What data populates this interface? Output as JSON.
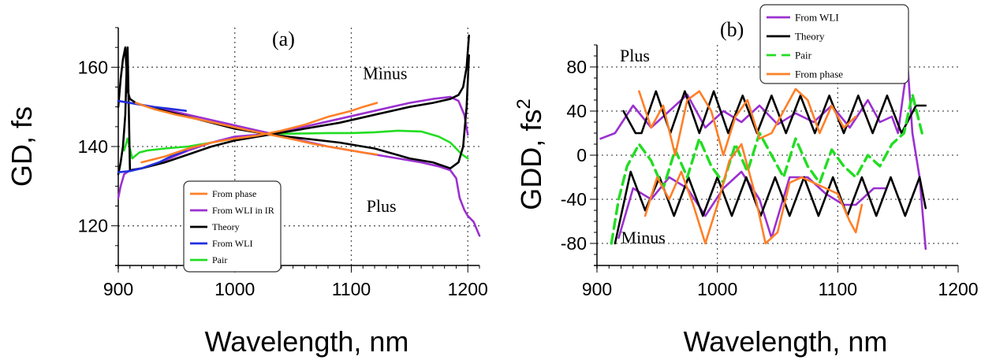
{
  "chart_data": [
    {
      "type": "line",
      "panel_label": "(a)",
      "xlabel": "Wavelength, nm",
      "ylabel": "GD, fs",
      "xlim": [
        900,
        1210
      ],
      "ylim": [
        110,
        170
      ],
      "x_ticks": [
        "900",
        "1000",
        "1100",
        "1200"
      ],
      "y_ticks": [
        "120",
        "140",
        "160"
      ],
      "grid": true,
      "annotations": [
        {
          "text": "Minus",
          "x": 1110,
          "y": 157
        },
        {
          "text": "Plus",
          "x": 1113,
          "y": 123.5
        }
      ],
      "legend": [
        "From phase",
        "From WLI in IR",
        "Theory",
        "From WLI",
        "Pair"
      ],
      "series": [
        {
          "name": "Pair",
          "color": "#22dd22",
          "x": [
            905,
            908,
            912,
            918,
            925,
            940,
            960,
            980,
            1000,
            1020,
            1040,
            1060,
            1080,
            1100,
            1120,
            1140,
            1160,
            1175,
            1185,
            1195,
            1200
          ],
          "y": [
            139,
            142,
            137,
            138.5,
            139,
            139.5,
            140,
            141,
            142,
            142.8,
            143.2,
            143.3,
            143.4,
            143.4,
            143.6,
            144,
            143.8,
            142.5,
            141,
            138,
            137
          ]
        },
        {
          "name": "From WLI in IR",
          "color": "#9b30d0",
          "x": [
            900,
            902,
            905,
            910,
            920,
            940,
            960,
            980,
            1000,
            1030,
            1060,
            1090,
            1120,
            1150,
            1170,
            1185,
            1192,
            1197,
            1200
          ],
          "y": [
            127,
            130,
            133,
            134,
            134.5,
            136.5,
            139,
            141,
            142.5,
            143.2,
            145,
            147,
            149,
            151,
            152,
            152.5,
            151.5,
            148,
            143
          ]
        },
        {
          "name": "From WLI in IR",
          "color": "#9b30d0",
          "x": [
            900,
            910,
            930,
            960,
            990,
            1020,
            1050,
            1080,
            1110,
            1140,
            1160,
            1175,
            1185,
            1190,
            1193,
            1197,
            1200,
            1205,
            1210
          ],
          "y": [
            151.5,
            151,
            150,
            148,
            146,
            144,
            142,
            140,
            138.5,
            137,
            136,
            135,
            134,
            132,
            127,
            124,
            122.5,
            121,
            117.5
          ]
        },
        {
          "name": "Theory",
          "color": "#000000",
          "x": [
            900,
            902,
            904,
            906,
            908,
            910,
            915,
            920,
            940,
            960,
            980,
            1000,
            1030,
            1060,
            1090,
            1120,
            1150,
            1170,
            1185,
            1192,
            1196,
            1199,
            1201
          ],
          "y": [
            150,
            157,
            162,
            165,
            154,
            152,
            151,
            150.5,
            149,
            147.5,
            146,
            144.5,
            143,
            142,
            141,
            139.5,
            137,
            136,
            134.5,
            136,
            140,
            150,
            163
          ]
        },
        {
          "name": "Theory",
          "color": "#000000",
          "x": [
            900,
            902,
            904,
            906,
            907,
            908,
            910,
            920,
            940,
            960,
            980,
            1000,
            1030,
            1060,
            1090,
            1120,
            1150,
            1170,
            1185,
            1192,
            1196,
            1199,
            1201
          ],
          "y": [
            133,
            136,
            140,
            148,
            158,
            165,
            134,
            134.5,
            136,
            138,
            140,
            141.5,
            143,
            144.5,
            146,
            148,
            150,
            151,
            152,
            153,
            155,
            160,
            168
          ]
        },
        {
          "name": "From WLI",
          "color": "#1f2fdd",
          "x": [
            900,
            910,
            920,
            930,
            945,
            958
          ],
          "y": [
            151.5,
            151,
            150.5,
            150,
            149.5,
            149
          ]
        },
        {
          "name": "From WLI",
          "color": "#1f2fdd",
          "x": [
            900,
            910,
            920,
            935,
            945,
            958
          ],
          "y": [
            133.5,
            133.8,
            134.5,
            136,
            137.5,
            139
          ]
        },
        {
          "name": "From phase",
          "color": "#ff7f27",
          "x": [
            920,
            940,
            960,
            980,
            1000,
            1020,
            1040,
            1060,
            1080,
            1100,
            1110,
            1122
          ],
          "y": [
            136,
            137.5,
            139.5,
            141,
            142,
            142.8,
            144,
            145.5,
            147.5,
            149,
            150,
            151
          ]
        },
        {
          "name": "From phase",
          "color": "#ff7f27",
          "x": [
            915,
            930,
            950,
            970,
            990,
            1010,
            1030,
            1050,
            1070,
            1090,
            1110,
            1122
          ],
          "y": [
            151,
            149.5,
            148,
            146.8,
            145.5,
            144.2,
            143,
            141.8,
            140.5,
            139.5,
            138.5,
            138
          ]
        }
      ]
    },
    {
      "type": "line",
      "panel_label": "(b)",
      "xlabel": "Wavelength, nm",
      "ylabel": "GDD, fs",
      "ylabel_sup": "2",
      "xlim": [
        900,
        1200
      ],
      "ylim": [
        -100,
        100
      ],
      "x_ticks": [
        "900",
        "1000",
        "1100",
        "1200"
      ],
      "y_ticks": [
        "-80",
        "-40",
        "0",
        "40",
        "80"
      ],
      "grid": true,
      "annotations": [
        {
          "text": "Plus",
          "x": 919,
          "y": 85
        },
        {
          "text": "Minus",
          "x": 920,
          "y": -80
        }
      ],
      "legend": [
        "From WLI",
        "Theory",
        "Pair",
        "From phase"
      ],
      "series": [
        {
          "name": "From WLI",
          "color": "#9b30d0",
          "x": [
            903,
            915,
            930,
            945,
            960,
            975,
            990,
            1005,
            1020,
            1035,
            1050,
            1065,
            1080,
            1095,
            1110,
            1125,
            1135,
            1145,
            1150,
            1155,
            1158,
            1162,
            1168,
            1173
          ],
          "y": [
            15,
            20,
            45,
            25,
            40,
            55,
            25,
            40,
            30,
            45,
            28,
            38,
            30,
            45,
            25,
            50,
            30,
            35,
            20,
            60,
            82,
            20,
            -20,
            -85
          ]
        },
        {
          "name": "From WLI",
          "color": "#9b30d0",
          "x": [
            918,
            930,
            945,
            960,
            975,
            990,
            1005,
            1020,
            1035,
            1045,
            1060,
            1075,
            1090,
            1105,
            1115,
            1130,
            1140
          ],
          "y": [
            -75,
            -30,
            -40,
            -20,
            -30,
            -55,
            -30,
            -15,
            -40,
            -75,
            -20,
            -20,
            -35,
            -45,
            -45,
            -30,
            -30
          ]
        },
        {
          "name": "Theory",
          "color": "#000000",
          "x": [
            922,
            932,
            937,
            949,
            961,
            973,
            985,
            997,
            1009,
            1021,
            1033,
            1045,
            1057,
            1069,
            1081,
            1093,
            1105,
            1117,
            1129,
            1141,
            1153,
            1165,
            1173
          ],
          "y": [
            40,
            20,
            20,
            58,
            20,
            58,
            20,
            58,
            20,
            54,
            20,
            54,
            20,
            54,
            20,
            54,
            20,
            54,
            20,
            54,
            20,
            45,
            45
          ]
        },
        {
          "name": "Theory",
          "color": "#000000",
          "x": [
            915,
            928,
            940,
            952,
            964,
            976,
            988,
            1000,
            1012,
            1024,
            1036,
            1048,
            1060,
            1072,
            1084,
            1096,
            1108,
            1120,
            1132,
            1144,
            1156,
            1168,
            1173
          ],
          "y": [
            -80,
            -15,
            -50,
            -20,
            -55,
            -20,
            -55,
            -20,
            -55,
            -20,
            -55,
            -20,
            -55,
            -20,
            -55,
            -20,
            -55,
            -20,
            -55,
            -20,
            -55,
            -20,
            -48
          ]
        },
        {
          "name": "Pair",
          "color": "#22dd22",
          "x": [
            912,
            918,
            925,
            935,
            945,
            955,
            965,
            975,
            985,
            995,
            1005,
            1015,
            1025,
            1035,
            1045,
            1055,
            1065,
            1075,
            1085,
            1095,
            1105,
            1115,
            1125,
            1135,
            1145,
            1155,
            1162,
            1170
          ],
          "y": [
            -80,
            -40,
            -10,
            10,
            -5,
            -30,
            5,
            -20,
            15,
            -10,
            -25,
            10,
            -15,
            20,
            0,
            -20,
            15,
            -10,
            -25,
            5,
            -10,
            -20,
            0,
            -10,
            10,
            20,
            55,
            20
          ]
        },
        {
          "name": "From phase",
          "color": "#ff7f27",
          "x": [
            935,
            945,
            955,
            965,
            975,
            985,
            995,
            1005,
            1015,
            1025,
            1035,
            1045,
            1055,
            1065,
            1075,
            1085,
            1095,
            1105,
            1115
          ],
          "y": [
            58,
            25,
            45,
            0,
            50,
            58,
            40,
            0,
            35,
            50,
            15,
            20,
            40,
            60,
            50,
            20,
            45,
            25,
            35
          ]
        },
        {
          "name": "From phase",
          "color": "#ff7f27",
          "x": [
            940,
            950,
            960,
            970,
            980,
            990,
            1000,
            1010,
            1020,
            1030,
            1040,
            1050,
            1060,
            1070,
            1080,
            1090,
            1100,
            1110,
            1115,
            1120
          ],
          "y": [
            -55,
            -20,
            -40,
            -15,
            -45,
            -80,
            -45,
            -5,
            10,
            -30,
            -80,
            -70,
            -25,
            -20,
            -25,
            -30,
            -35,
            -60,
            -70,
            -45
          ]
        }
      ]
    }
  ]
}
